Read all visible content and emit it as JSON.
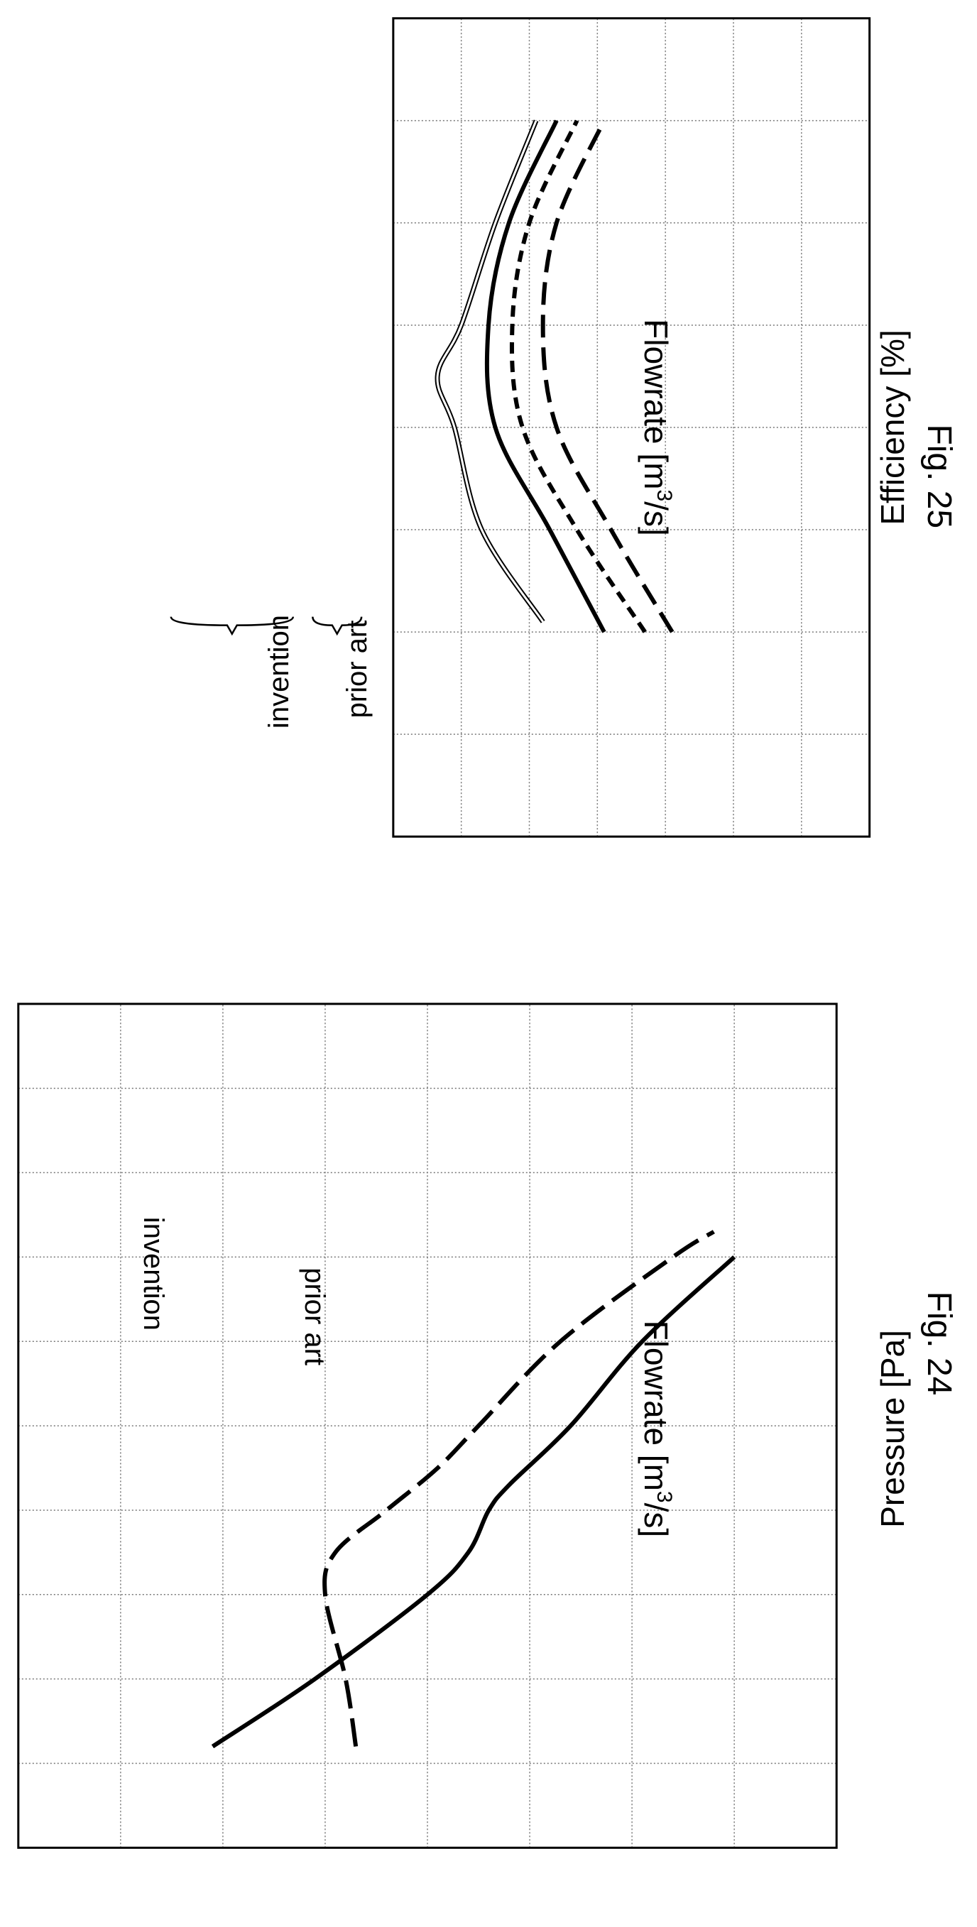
{
  "chart_data": [
    {
      "figure": "Fig. 24",
      "type": "line",
      "xlabel_prefix": "Flowrate [m",
      "xlabel_sup": "3",
      "xlabel_suffix": "/s]",
      "ylabel": "Pressure [Pa]",
      "grid": true,
      "xlim": [
        0,
        10
      ],
      "ylim": [
        0,
        8
      ],
      "series": [
        {
          "name": "invention",
          "style": "solid",
          "x": [
            1.2,
            2.0,
            3.0,
            3.5,
            4.0,
            4.3,
            5.0,
            6.0,
            7.0
          ],
          "y": [
            6.1,
            5.1,
            4.0,
            3.6,
            3.4,
            3.2,
            2.6,
            1.9,
            1.0
          ]
        },
        {
          "name": "prior art",
          "style": "dashed",
          "x": [
            1.2,
            2.0,
            3.0,
            3.5,
            4.0,
            4.5,
            5.0,
            6.0,
            7.0,
            7.3
          ],
          "y": [
            4.7,
            4.8,
            5.0,
            4.9,
            4.4,
            3.9,
            3.5,
            2.7,
            1.6,
            1.2
          ]
        }
      ]
    },
    {
      "figure": "Fig. 25",
      "type": "line",
      "xlabel_prefix": "Flowrate [m",
      "xlabel_sup": "3",
      "xlabel_suffix": "/s]",
      "ylabel": "Efficiency [%]",
      "grid": true,
      "xlim": [
        0,
        8
      ],
      "ylim": [
        0,
        7
      ],
      "group_labels": [
        "invention",
        "prior art"
      ],
      "series": [
        {
          "name": "invention-1",
          "style": "double",
          "x": [
            2.1,
            3.0,
            4.0,
            4.5,
            5.0,
            6.0,
            7.0
          ],
          "y": [
            4.8,
            5.7,
            6.1,
            6.35,
            6.0,
            5.5,
            4.9
          ]
        },
        {
          "name": "invention-2",
          "style": "solid",
          "x": [
            2.0,
            3.0,
            4.0,
            5.0,
            6.0,
            7.0
          ],
          "y": [
            3.9,
            4.7,
            5.5,
            5.6,
            5.3,
            4.6
          ]
        },
        {
          "name": "prior-art-1",
          "style": "short-dash",
          "x": [
            2.0,
            3.0,
            4.0,
            5.0,
            6.0,
            7.0
          ],
          "y": [
            3.3,
            4.3,
            5.1,
            5.25,
            5.0,
            4.3
          ]
        },
        {
          "name": "prior-art-2",
          "style": "long-dash",
          "x": [
            2.0,
            3.0,
            4.0,
            5.0,
            6.0,
            7.0
          ],
          "y": [
            2.9,
            3.8,
            4.6,
            4.8,
            4.6,
            3.9
          ]
        }
      ]
    }
  ]
}
